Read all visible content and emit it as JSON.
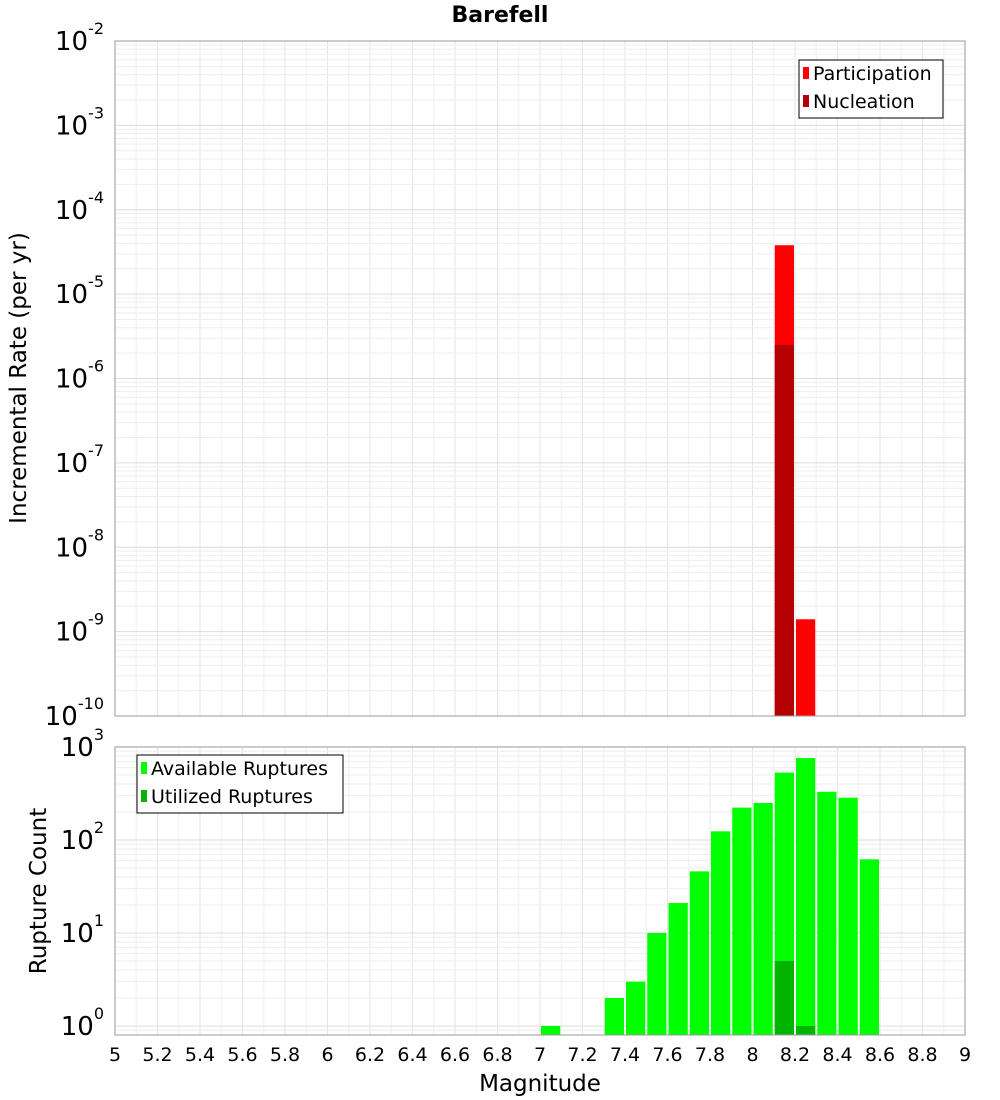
{
  "chart_data": [
    {
      "type": "bar",
      "title": "Barefell",
      "ylabel": "Incremental Rate (per yr)",
      "xlabel": "",
      "xlim": [
        5,
        9
      ],
      "yscale": "log",
      "ylim": [
        1e-10,
        0.01
      ],
      "y_ticks": [
        {
          "base": "10",
          "exp": "-10",
          "value": 1e-10
        },
        {
          "base": "10",
          "exp": "-9",
          "value": 1e-09
        },
        {
          "base": "10",
          "exp": "-8",
          "value": 1e-08
        },
        {
          "base": "10",
          "exp": "-7",
          "value": 1e-07
        },
        {
          "base": "10",
          "exp": "-6",
          "value": 1e-06
        },
        {
          "base": "10",
          "exp": "-5",
          "value": 1e-05
        },
        {
          "base": "10",
          "exp": "-4",
          "value": 0.0001
        },
        {
          "base": "10",
          "exp": "-3",
          "value": 0.001
        },
        {
          "base": "10",
          "exp": "-2",
          "value": 0.01
        }
      ],
      "bin_width": 0.1,
      "grid": true,
      "legend_position": "top-right",
      "series": [
        {
          "name": "Participation",
          "color": "#ff0000",
          "points": [
            [
              8.15,
              3.8e-05
            ],
            [
              8.25,
              1.4e-09
            ]
          ]
        },
        {
          "name": "Nucleation",
          "color": "#b40000",
          "points": [
            [
              8.15,
              2.5e-06
            ]
          ]
        }
      ]
    },
    {
      "type": "bar",
      "title": "",
      "ylabel": "Rupture Count",
      "xlabel": "Magnitude",
      "xlim": [
        5,
        9
      ],
      "yscale": "log",
      "ylim": [
        0.8,
        1000
      ],
      "y_ticks": [
        {
          "base": "10",
          "exp": "0",
          "value": 1
        },
        {
          "base": "10",
          "exp": "1",
          "value": 10
        },
        {
          "base": "10",
          "exp": "2",
          "value": 100
        },
        {
          "base": "10",
          "exp": "3",
          "value": 1000
        }
      ],
      "x_ticks": [
        "5",
        "5.2",
        "5.4",
        "5.6",
        "5.8",
        "6",
        "6.2",
        "6.4",
        "6.6",
        "6.8",
        "7",
        "7.2",
        "7.4",
        "7.6",
        "7.8",
        "8",
        "8.2",
        "8.4",
        "8.6",
        "8.8",
        "9"
      ],
      "bin_width": 0.1,
      "grid": true,
      "legend_position": "top-left",
      "series": [
        {
          "name": "Available Ruptures",
          "color": "#00ff00",
          "points": [
            [
              7.05,
              1
            ],
            [
              7.35,
              2
            ],
            [
              7.45,
              3
            ],
            [
              7.55,
              10
            ],
            [
              7.65,
              21
            ],
            [
              7.75,
              46
            ],
            [
              7.85,
              124
            ],
            [
              7.95,
              223
            ],
            [
              8.05,
              250
            ],
            [
              8.15,
              530
            ],
            [
              8.25,
              760
            ],
            [
              8.35,
              330
            ],
            [
              8.45,
              285
            ],
            [
              8.55,
              62
            ]
          ]
        },
        {
          "name": "Utilized Ruptures",
          "color": "#00b400",
          "points": [
            [
              8.15,
              5
            ],
            [
              8.25,
              1
            ]
          ]
        }
      ]
    }
  ]
}
